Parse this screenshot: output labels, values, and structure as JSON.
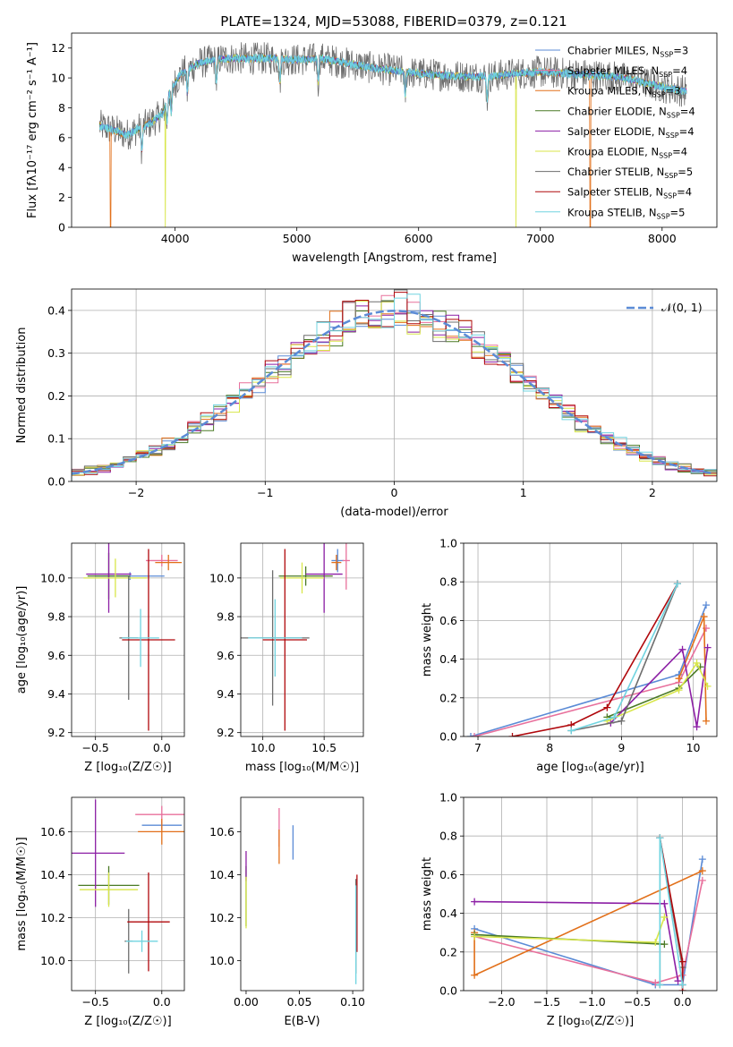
{
  "figure_title": "PLATE=1324, MJD=53088, FIBERID=0379, z=0.121",
  "colors": {
    "chabrier_miles": "#5b8bd6",
    "salpeter_miles": "#e8709c",
    "kroupa_miles": "#e2701a",
    "chabrier_elodie": "#4a7a25",
    "salpeter_elodie": "#8c1fa5",
    "kroupa_elodie": "#d8e64a",
    "chabrier_stelib": "#6e6e6e",
    "salpeter_stelib": "#b0080c",
    "kroupa_stelib": "#70d4e0"
  },
  "chart_data": [
    {
      "id": "spectrum",
      "type": "line",
      "xlabel": "wavelength [Angstrom, rest frame]",
      "ylabel": "Flux [fλ10⁻¹⁷ erg cm⁻² s⁻¹ A⁻¹]",
      "xlim": [
        3150,
        8450
      ],
      "ylim": [
        0,
        13
      ],
      "xticks": [
        4000,
        5000,
        6000,
        7000,
        8000
      ],
      "yticks": [
        0,
        2,
        4,
        6,
        8,
        10,
        12
      ],
      "grid": false,
      "legend_position": "right",
      "legend": [
        {
          "label": "Chabrier MILES, N",
          "sub": "SSP",
          "suffix": "=3",
          "color": "chabrier_miles"
        },
        {
          "label": "Salpeter MILES, N",
          "sub": "SSP",
          "suffix": "=4",
          "color": "salpeter_miles"
        },
        {
          "label": "Kroupa MILES, N",
          "sub": "SSP",
          "suffix": "=3",
          "color": "kroupa_miles"
        },
        {
          "label": "Chabrier ELODIE, N",
          "sub": "SSP",
          "suffix": "=4",
          "color": "chabrier_elodie"
        },
        {
          "label": "Salpeter ELODIE, N",
          "sub": "SSP",
          "suffix": "=4",
          "color": "salpeter_elodie"
        },
        {
          "label": "Kroupa ELODIE, N",
          "sub": "SSP",
          "suffix": "=4",
          "color": "kroupa_elodie"
        },
        {
          "label": "Chabrier STELIB, N",
          "sub": "SSP",
          "suffix": "=5",
          "color": "chabrier_stelib"
        },
        {
          "label": "Salpeter STELIB, N",
          "sub": "SSP",
          "suffix": "=4",
          "color": "salpeter_stelib"
        },
        {
          "label": "Kroupa STELIB, N",
          "sub": "SSP",
          "suffix": "=5",
          "color": "kroupa_stelib"
        }
      ],
      "continuum": [
        [
          3380,
          6.8
        ],
        [
          3500,
          6.5
        ],
        [
          3600,
          6.2
        ],
        [
          3700,
          6.6
        ],
        [
          3800,
          7.0
        ],
        [
          3900,
          7.6
        ],
        [
          3950,
          9.0
        ],
        [
          4050,
          10.3
        ],
        [
          4200,
          11.0
        ],
        [
          4400,
          11.3
        ],
        [
          4600,
          11.3
        ],
        [
          4800,
          11.3
        ],
        [
          5000,
          11.2
        ],
        [
          5200,
          11.3
        ],
        [
          5400,
          11.0
        ],
        [
          5600,
          10.7
        ],
        [
          5800,
          10.5
        ],
        [
          6000,
          10.3
        ],
        [
          6200,
          10.2
        ],
        [
          6400,
          10.1
        ],
        [
          6600,
          10.1
        ],
        [
          6800,
          10.3
        ],
        [
          7000,
          10.4
        ],
        [
          7200,
          10.3
        ],
        [
          7400,
          10.2
        ],
        [
          7600,
          10.1
        ],
        [
          7800,
          9.8
        ],
        [
          8000,
          9.4
        ],
        [
          8200,
          9.1
        ]
      ]
    },
    {
      "id": "residuals",
      "type": "histogram",
      "xlabel": "(data-model)/error",
      "ylabel": "Normed distribution",
      "xlim": [
        -2.5,
        2.5
      ],
      "ylim": [
        0,
        0.45
      ],
      "xticks": [
        -2,
        -1,
        0,
        1,
        2
      ],
      "yticks": [
        0.0,
        0.1,
        0.2,
        0.3,
        0.4
      ],
      "grid": true,
      "legend_position": "top-right",
      "normal_label": "𝒩(0, 1)",
      "normal_color": "#5b8bd6",
      "bin_width": 0.1
    },
    {
      "id": "age_vs_Z",
      "type": "errorbar",
      "xlabel": "Z [log₁₀(Z/Z☉)]",
      "ylabel": "age  [log₁₀(age/yr)]",
      "xlim": [
        -0.68,
        0.17
      ],
      "ylim": [
        9.18,
        10.18
      ],
      "xticks": [
        -0.5,
        0.0
      ],
      "yticks": [
        9.2,
        9.4,
        9.6,
        9.8,
        10.0
      ],
      "grid": true,
      "points": [
        {
          "color": "chabrier_miles",
          "x": -0.24,
          "y": 10.01,
          "xerr": 0.26,
          "yerr": 0.02
        },
        {
          "color": "salpeter_miles",
          "x": 0.0,
          "y": 10.09,
          "xerr": 0.12,
          "yerr": 0.03
        },
        {
          "color": "kroupa_miles",
          "x": 0.05,
          "y": 10.08,
          "xerr": 0.1,
          "yerr": 0.04
        },
        {
          "color": "chabrier_elodie",
          "x": -0.4,
          "y": 10.01,
          "xerr": 0.16,
          "yerr": 0.12
        },
        {
          "color": "salpeter_elodie",
          "x": -0.4,
          "y": 10.02,
          "xerr": 0.17,
          "yerr": 0.2
        },
        {
          "color": "kroupa_elodie",
          "x": -0.35,
          "y": 10.0,
          "xerr": 0.24,
          "yerr": 0.1
        },
        {
          "color": "chabrier_stelib",
          "x": -0.25,
          "y": 9.69,
          "xerr": 0.07,
          "yerr": 0.32
        },
        {
          "color": "salpeter_stelib",
          "x": -0.1,
          "y": 9.68,
          "xerr": 0.2,
          "yerr": 0.47
        },
        {
          "color": "kroupa_stelib",
          "x": -0.16,
          "y": 9.69,
          "xerr": 0.14,
          "yerr": 0.15
        }
      ]
    },
    {
      "id": "age_vs_mass",
      "type": "errorbar",
      "xlabel": "mass [log₁₀(M/M☉)]",
      "ylabel": "",
      "xlim": [
        9.82,
        10.82
      ],
      "ylim": [
        9.18,
        10.18
      ],
      "xticks": [
        10.0,
        10.5
      ],
      "yticks": [
        9.2,
        9.4,
        9.6,
        9.8,
        10.0
      ],
      "grid": true,
      "points": [
        {
          "color": "chabrier_miles",
          "x": 10.61,
          "y": 10.09,
          "xerr": 0.05,
          "yerr": 0.06
        },
        {
          "color": "salpeter_miles",
          "x": 10.68,
          "y": 10.09,
          "xerr": 0.03,
          "yerr": 0.15
        },
        {
          "color": "kroupa_miles",
          "x": 10.6,
          "y": 10.08,
          "xerr": 0.04,
          "yerr": 0.04
        },
        {
          "color": "chabrier_elodie",
          "x": 10.35,
          "y": 10.01,
          "xerr": 0.22,
          "yerr": 0.05
        },
        {
          "color": "salpeter_elodie",
          "x": 10.5,
          "y": 10.02,
          "xerr": 0.15,
          "yerr": 0.2
        },
        {
          "color": "kroupa_elodie",
          "x": 10.32,
          "y": 10.0,
          "xerr": 0.18,
          "yerr": 0.08
        },
        {
          "color": "chabrier_stelib",
          "x": 10.08,
          "y": 9.69,
          "xerr": 0.3,
          "yerr": 0.35
        },
        {
          "color": "salpeter_stelib",
          "x": 10.18,
          "y": 9.68,
          "xerr": 0.18,
          "yerr": 0.47
        },
        {
          "color": "kroupa_stelib",
          "x": 10.1,
          "y": 9.69,
          "xerr": 0.22,
          "yerr": 0.2
        }
      ]
    },
    {
      "id": "massweight_vs_age",
      "type": "line",
      "xlabel": "age  [log₁₀(age/yr)]",
      "ylabel": "mass weight",
      "xlim": [
        6.8,
        10.33
      ],
      "ylim": [
        0,
        1
      ],
      "xticks": [
        7,
        8,
        9,
        10
      ],
      "yticks": [
        0.0,
        0.2,
        0.4,
        0.6,
        0.8,
        1.0
      ],
      "grid": true,
      "series": [
        {
          "color": "chabrier_miles",
          "x": [
            6.9,
            9.8,
            10.18
          ],
          "y": [
            0.0,
            0.32,
            0.68
          ]
        },
        {
          "color": "salpeter_miles",
          "x": [
            6.95,
            9.8,
            10.18
          ],
          "y": [
            0.0,
            0.28,
            0.56
          ]
        },
        {
          "color": "kroupa_miles",
          "x": [
            9.8,
            10.15,
            10.18
          ],
          "y": [
            0.3,
            0.62,
            0.08
          ]
        },
        {
          "color": "chabrier_elodie",
          "x": [
            8.8,
            9.8,
            10.1
          ],
          "y": [
            0.1,
            0.25,
            0.36
          ]
        },
        {
          "color": "salpeter_elodie",
          "x": [
            8.85,
            9.85,
            10.05,
            10.2
          ],
          "y": [
            0.07,
            0.45,
            0.05,
            0.46
          ]
        },
        {
          "color": "kroupa_elodie",
          "x": [
            8.8,
            9.8,
            10.05,
            10.2
          ],
          "y": [
            0.08,
            0.24,
            0.38,
            0.26
          ]
        },
        {
          "color": "chabrier_stelib",
          "x": [
            8.3,
            9.0,
            9.78
          ],
          "y": [
            0.03,
            0.08,
            0.79
          ]
        },
        {
          "color": "salpeter_stelib",
          "x": [
            7.48,
            8.3,
            8.8,
            9.78
          ],
          "y": [
            0.0,
            0.06,
            0.15,
            0.79
          ]
        },
        {
          "color": "kroupa_stelib",
          "x": [
            8.3,
            8.9,
            9.78
          ],
          "y": [
            0.03,
            0.1,
            0.79
          ]
        }
      ]
    },
    {
      "id": "mass_vs_Z",
      "type": "errorbar",
      "xlabel": "Z [log₁₀(Z/Z☉)]",
      "ylabel": "mass [log₁₀(M/M☉)]",
      "xlim": [
        -0.68,
        0.17
      ],
      "ylim": [
        9.86,
        10.76
      ],
      "xticks": [
        -0.5,
        0.0
      ],
      "yticks": [
        10.0,
        10.2,
        10.4,
        10.6
      ],
      "grid": true,
      "points": [
        {
          "color": "chabrier_miles",
          "x": 0.0,
          "y": 10.63,
          "xerr": 0.15,
          "yerr": 0.02
        },
        {
          "color": "salpeter_miles",
          "x": 0.0,
          "y": 10.68,
          "xerr": 0.2,
          "yerr": 0.04
        },
        {
          "color": "kroupa_miles",
          "x": 0.0,
          "y": 10.6,
          "xerr": 0.18,
          "yerr": 0.06
        },
        {
          "color": "chabrier_elodie",
          "x": -0.4,
          "y": 10.35,
          "xerr": 0.23,
          "yerr": 0.09
        },
        {
          "color": "salpeter_elodie",
          "x": -0.5,
          "y": 10.5,
          "xerr": 0.22,
          "yerr": 0.25
        },
        {
          "color": "kroupa_elodie",
          "x": -0.4,
          "y": 10.33,
          "xerr": 0.22,
          "yerr": 0.08
        },
        {
          "color": "chabrier_stelib",
          "x": -0.25,
          "y": 10.09,
          "xerr": 0.03,
          "yerr": 0.15
        },
        {
          "color": "salpeter_stelib",
          "x": -0.1,
          "y": 10.18,
          "xerr": 0.16,
          "yerr": 0.23
        },
        {
          "color": "kroupa_stelib",
          "x": -0.15,
          "y": 10.09,
          "xerr": 0.12,
          "yerr": 0.05
        }
      ]
    },
    {
      "id": "mass_vs_ebv",
      "type": "errorbar",
      "xlabel": "E(B-V)",
      "ylabel": "",
      "xlim": [
        -0.005,
        0.11
      ],
      "ylim": [
        9.86,
        10.76
      ],
      "xticks": [
        0.0,
        0.05,
        0.1
      ],
      "yticks": [
        10.0,
        10.2,
        10.4,
        10.6
      ],
      "grid": false,
      "points": [
        {
          "color": "chabrier_miles",
          "x": 0.044,
          "y": 10.55,
          "xerr": 0.0,
          "yerr": 0.08
        },
        {
          "color": "salpeter_miles",
          "x": 0.031,
          "y": 10.62,
          "xerr": 0.0,
          "yerr": 0.09
        },
        {
          "color": "kroupa_miles",
          "x": 0.031,
          "y": 10.53,
          "xerr": 0.0,
          "yerr": 0.08
        },
        {
          "color": "chabrier_elodie",
          "x": 0.0,
          "y": 10.3,
          "xerr": 0.0,
          "yerr": 0.14
        },
        {
          "color": "salpeter_elodie",
          "x": 0.0,
          "y": 10.44,
          "xerr": 0.0,
          "yerr": 0.07
        },
        {
          "color": "kroupa_elodie",
          "x": 0.0,
          "y": 10.27,
          "xerr": 0.0,
          "yerr": 0.12
        },
        {
          "color": "chabrier_stelib",
          "x": 0.103,
          "y": 10.16,
          "xerr": 0.0,
          "yerr": 0.22
        },
        {
          "color": "salpeter_stelib",
          "x": 0.104,
          "y": 10.22,
          "xerr": 0.0,
          "yerr": 0.18
        },
        {
          "color": "kroupa_stelib",
          "x": 0.103,
          "y": 10.12,
          "xerr": 0.0,
          "yerr": 0.23
        }
      ]
    },
    {
      "id": "massweight_vs_Z",
      "type": "line",
      "xlabel": "Z [log₁₀(Z/Z☉)]",
      "ylabel": "mass weight",
      "xlim": [
        -2.42,
        0.38
      ],
      "ylim": [
        0,
        1
      ],
      "xticks": [
        -2.0,
        -1.5,
        -1.0,
        -0.5,
        0.0
      ],
      "yticks": [
        0.0,
        0.2,
        0.4,
        0.6,
        0.8,
        1.0
      ],
      "grid": true,
      "series": [
        {
          "color": "chabrier_miles",
          "x": [
            -2.3,
            -0.3,
            0.0,
            0.22
          ],
          "y": [
            0.32,
            0.03,
            0.03,
            0.68
          ]
        },
        {
          "color": "salpeter_miles",
          "x": [
            -2.3,
            -0.3,
            0.0,
            0.22
          ],
          "y": [
            0.28,
            0.04,
            0.08,
            0.57
          ]
        },
        {
          "color": "kroupa_miles",
          "x": [
            -2.3,
            -2.3,
            0.22
          ],
          "y": [
            0.3,
            0.08,
            0.62
          ]
        },
        {
          "color": "chabrier_elodie",
          "x": [
            -2.3,
            -0.2
          ],
          "y": [
            0.29,
            0.24
          ]
        },
        {
          "color": "salpeter_elodie",
          "x": [
            -2.3,
            -0.2,
            -0.05
          ],
          "y": [
            0.46,
            0.45,
            0.05
          ]
        },
        {
          "color": "kroupa_elodie",
          "x": [
            -2.3,
            -0.3,
            -0.2
          ],
          "y": [
            0.28,
            0.25,
            0.38
          ]
        },
        {
          "color": "chabrier_stelib",
          "x": [
            -0.25,
            -0.25,
            0.0,
            0.0
          ],
          "y": [
            0.03,
            0.79,
            0.12,
            0.03
          ]
        },
        {
          "color": "salpeter_stelib",
          "x": [
            -0.25,
            0.0,
            0.0
          ],
          "y": [
            0.79,
            0.15,
            0.0
          ]
        },
        {
          "color": "kroupa_stelib",
          "x": [
            -0.25,
            -0.25,
            0.0
          ],
          "y": [
            0.03,
            0.79,
            0.03
          ]
        }
      ]
    }
  ]
}
